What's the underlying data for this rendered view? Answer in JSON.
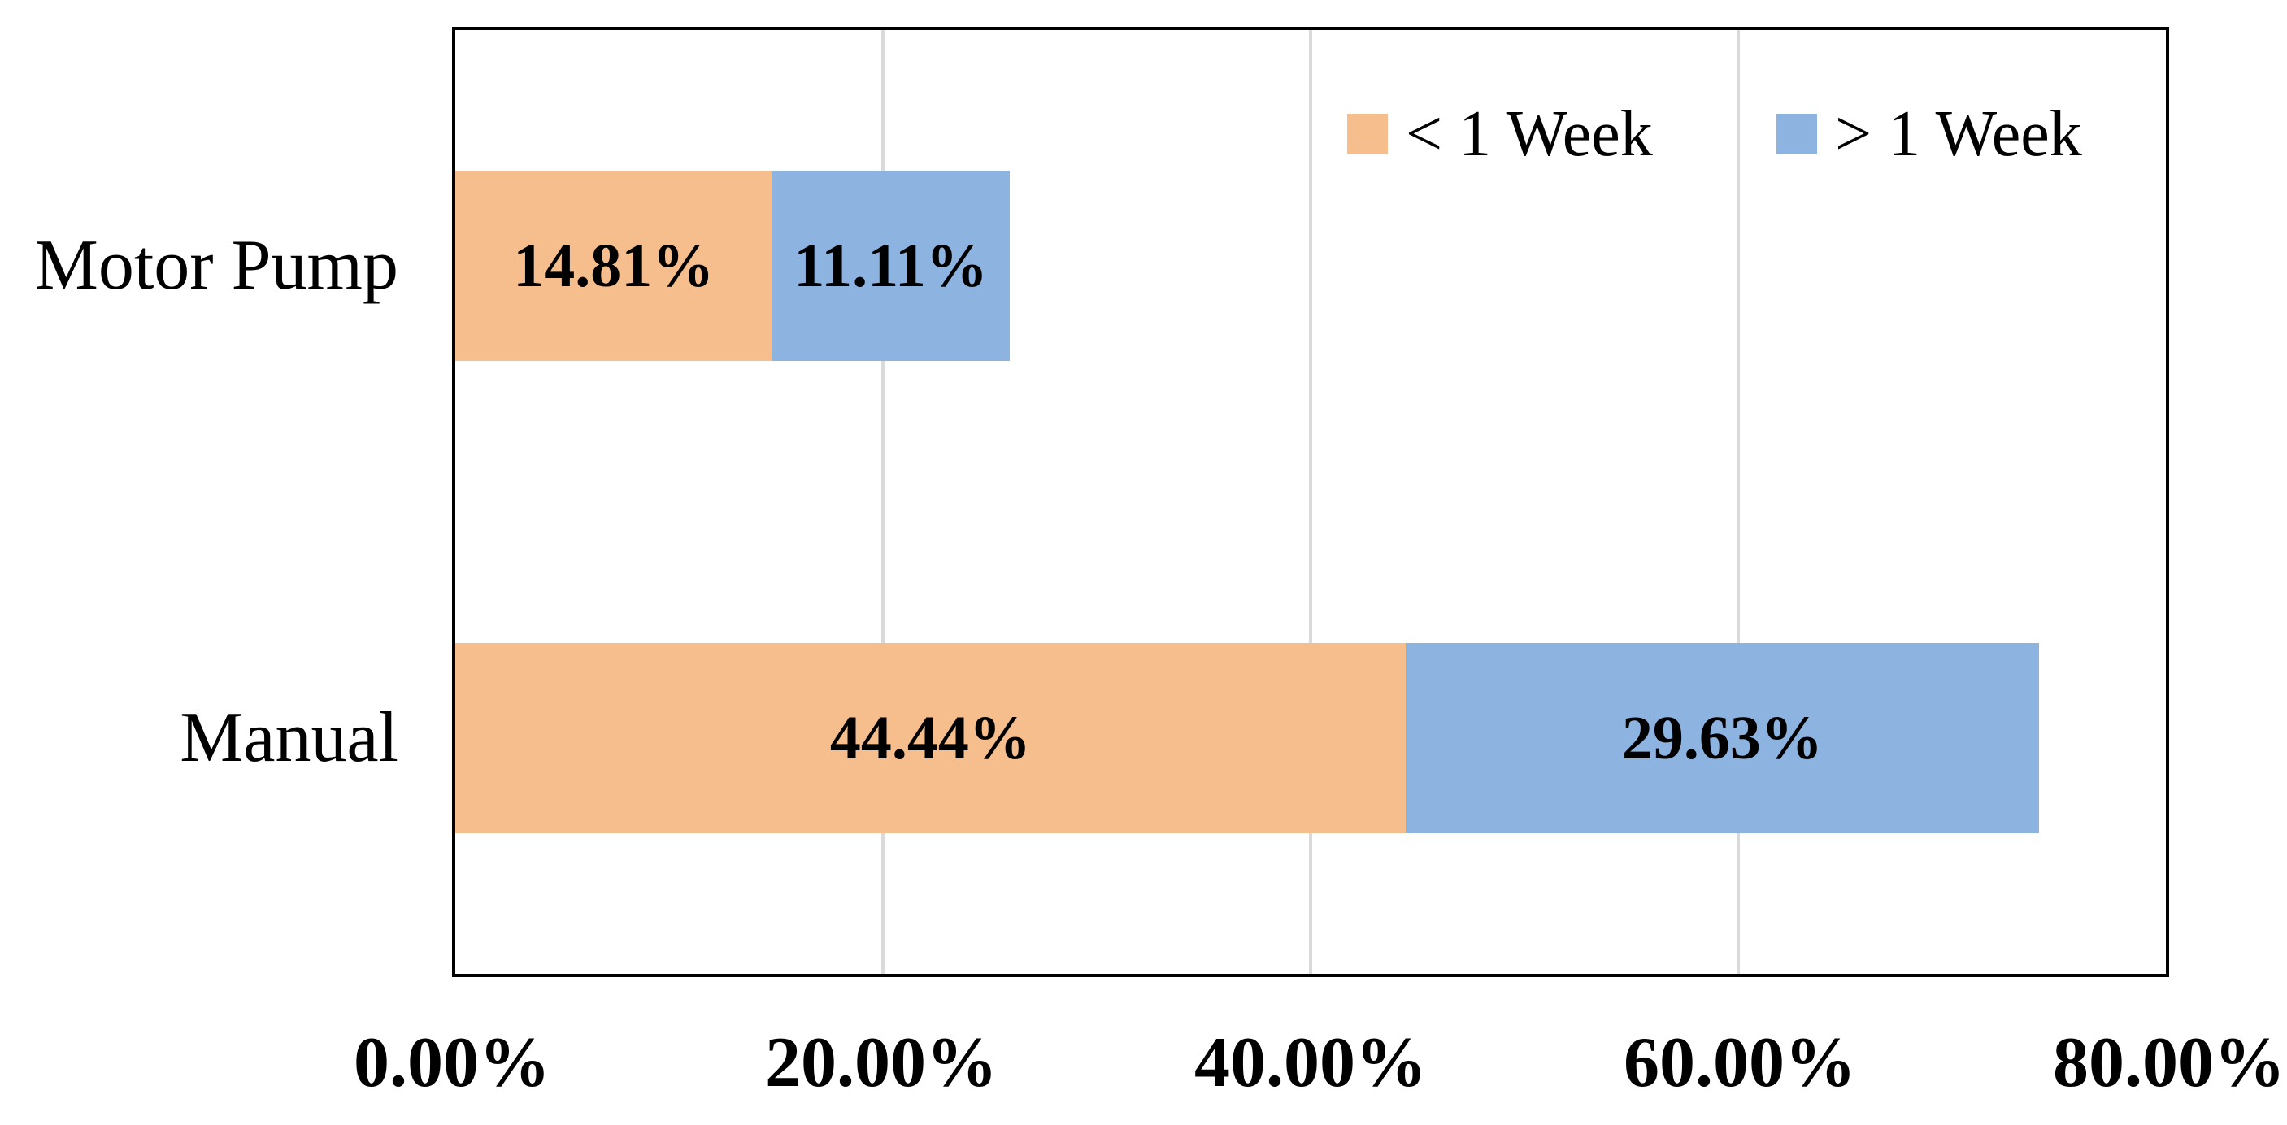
{
  "chart_data": {
    "type": "bar",
    "orientation": "horizontal",
    "stacked": true,
    "title": "",
    "xlabel": "",
    "ylabel": "",
    "categories": [
      "Motor Pump",
      "Manual"
    ],
    "series": [
      {
        "name": "< 1 Week",
        "color": "#F7BE8D",
        "values": [
          14.81,
          44.44
        ],
        "labels": [
          "14.81%",
          "44.44%"
        ]
      },
      {
        "name": "> 1 Week",
        "color": "#8DB3E1",
        "values": [
          11.11,
          29.63
        ],
        "labels": [
          "11.11%",
          "29.63%"
        ]
      }
    ],
    "xlim": [
      0,
      80
    ],
    "xticks": [
      {
        "value": 0,
        "label": "0.00%"
      },
      {
        "value": 20,
        "label": "20.00%"
      },
      {
        "value": 40,
        "label": "40.00%"
      },
      {
        "value": 60,
        "label": "60.00%"
      },
      {
        "value": 80,
        "label": "80.00%"
      }
    ],
    "grid": true,
    "legend_position": "top-right-inside",
    "colors": {
      "plot_border": "#000000",
      "gridline": "#DADADA",
      "label_text": "#000000",
      "background": "#FFFFFF"
    }
  }
}
